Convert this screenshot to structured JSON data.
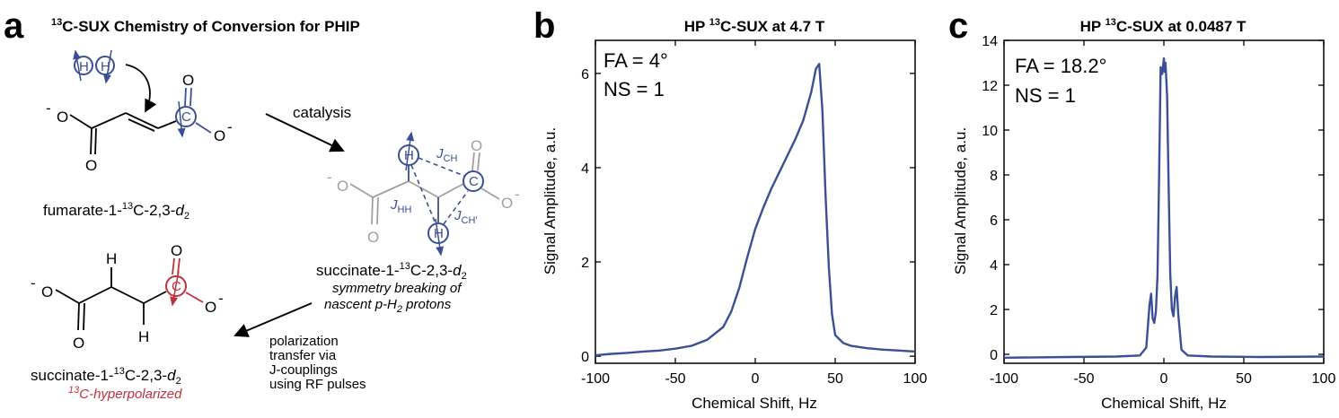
{
  "colors": {
    "spectrum": "#3b4f95",
    "mechanism_blue": "#3b4f95",
    "hyperpolarized_red": "#c0303a",
    "gray_molecule": "#a0a0a0",
    "axes": "#000000"
  },
  "panel_a": {
    "letter": "a",
    "title_sup": "13",
    "title_rest": "C-SUX Chemistry of Conversion for PHIP",
    "h2_atom": "H",
    "carbon_atom": "C",
    "oxygen": "O",
    "anion_charge": "-",
    "fumarate_label": {
      "prefix": "fumarate-1-",
      "sup": "13",
      "mid": "C-2,3-",
      "d": "d",
      "sub": "2"
    },
    "catalysis_label": "catalysis",
    "succinate_intermediate_label": {
      "prefix": "succinate-1-",
      "sup": "13",
      "mid": "C-2,3-",
      "d": "d",
      "sub": "2"
    },
    "symmetry_note_line1": "symmetry breaking of",
    "symmetry_note_line2_pre": "nascent ",
    "symmetry_note_line2_ph": "p",
    "symmetry_note_line2_h": "-H",
    "symmetry_note_line2_sub": "2",
    "symmetry_note_line2_post": " protons",
    "j_ch": {
      "J": "J",
      "sub": "CH"
    },
    "j_hh": {
      "J": "J",
      "sub": "HH"
    },
    "j_chp": {
      "J": "J",
      "sub": "CH'"
    },
    "polarization_lines": [
      "polarization",
      "transfer via",
      "J-couplings",
      "using RF pulses"
    ],
    "succinate_product_label": {
      "prefix": "succinate-1-",
      "sup": "13",
      "mid": "C-2,3-",
      "d": "d",
      "sub": "2"
    },
    "hyper_label": {
      "sup": "13",
      "rest": "C-hyperpolarized"
    }
  },
  "chart_data": [
    {
      "panel": "b",
      "type": "line",
      "title_prefix": "HP ",
      "title_sup": "13",
      "title_rest": "C-SUX at 4.7 T",
      "xlabel": "Chemical Shift, Hz",
      "ylabel": "Signal Amplitude, a.u.",
      "xlim": [
        -100,
        100
      ],
      "ylim": [
        -0.15,
        6.7
      ],
      "xticks": [
        -100,
        -50,
        0,
        50,
        100
      ],
      "yticks": [
        0,
        2,
        4,
        6
      ],
      "grid": false,
      "annotations": [
        "FA = 4°",
        "NS = 1"
      ],
      "series": [
        {
          "x": [
            -100,
            -90,
            -80,
            -70,
            -60,
            -50,
            -40,
            -30,
            -20,
            -15,
            -10,
            -5,
            0,
            5,
            10,
            15,
            20,
            25,
            30,
            35,
            38,
            40,
            42,
            44,
            46,
            48,
            50,
            55,
            60,
            70,
            80,
            90,
            100
          ],
          "y": [
            0.02,
            0.05,
            0.07,
            0.1,
            0.12,
            0.16,
            0.22,
            0.35,
            0.62,
            0.95,
            1.45,
            2.1,
            2.7,
            3.15,
            3.55,
            3.9,
            4.25,
            4.6,
            5.0,
            5.6,
            6.1,
            6.2,
            5.2,
            3.4,
            1.9,
            0.9,
            0.45,
            0.28,
            0.22,
            0.17,
            0.14,
            0.12,
            0.1
          ]
        }
      ]
    },
    {
      "panel": "c",
      "type": "line",
      "title_prefix": "HP ",
      "title_sup": "13",
      "title_rest": "C-SUX at 0.0487 T",
      "xlabel": "Chemical Shift, Hz",
      "ylabel": "Signal Amplitude, a.u.",
      "xlim": [
        -100,
        100
      ],
      "ylim": [
        -0.4,
        14
      ],
      "xticks": [
        -100,
        -50,
        0,
        50,
        100
      ],
      "yticks": [
        0,
        2,
        4,
        6,
        8,
        10,
        12,
        14
      ],
      "grid": false,
      "annotations": [
        "FA = 18.2°",
        "NS = 1"
      ],
      "series": [
        {
          "x": [
            -100,
            -60,
            -30,
            -15,
            -11,
            -9,
            -8,
            -7,
            -6,
            -5,
            -4,
            -3,
            -2,
            -1,
            0,
            0.5,
            1,
            2,
            3,
            4,
            5,
            6,
            7,
            8,
            9,
            11,
            15,
            30,
            60,
            100
          ],
          "y": [
            -0.15,
            -0.12,
            -0.1,
            -0.05,
            0.3,
            2.2,
            2.7,
            1.6,
            1.4,
            1.9,
            3.5,
            8.0,
            12.8,
            12.5,
            13.2,
            12.6,
            13.0,
            11.5,
            7.5,
            3.6,
            2.0,
            1.7,
            2.6,
            3.0,
            1.8,
            0.2,
            -0.05,
            -0.1,
            -0.12,
            -0.1
          ]
        }
      ]
    }
  ]
}
